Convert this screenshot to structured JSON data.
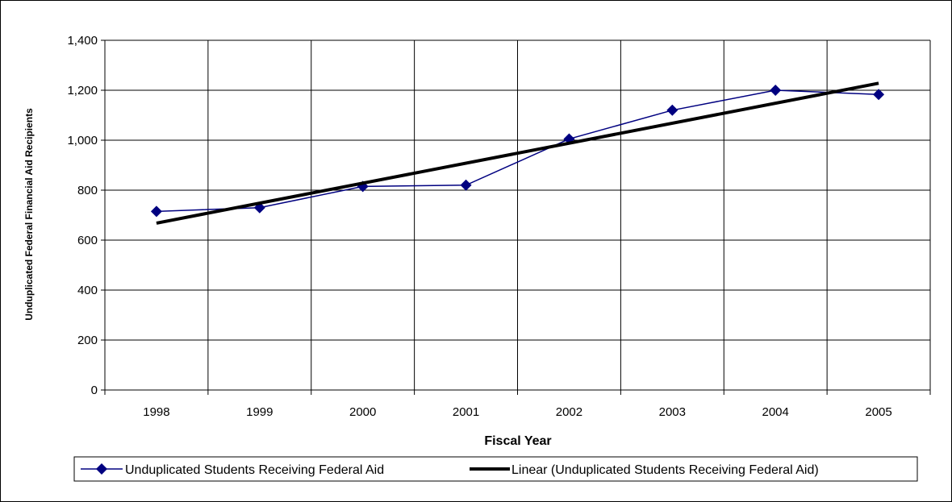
{
  "chart_data": {
    "type": "line",
    "title": "",
    "xlabel": "Fiscal Year",
    "ylabel": "Unduplicated Federal Financial Aid Recipients",
    "categories": [
      "1998",
      "1999",
      "2000",
      "2001",
      "2002",
      "2003",
      "2004",
      "2005"
    ],
    "ylim": [
      0,
      1400
    ],
    "yticks": [
      0,
      200,
      400,
      600,
      800,
      1000,
      1200,
      1400
    ],
    "ytick_labels": [
      "0",
      "200",
      "400",
      "600",
      "800",
      "1,000",
      "1,200",
      "1,400"
    ],
    "grid": true,
    "legend_position": "bottom",
    "series": [
      {
        "name": "Unduplicated Students Receiving Federal Aid",
        "values": [
          715,
          730,
          815,
          820,
          1005,
          1120,
          1200,
          1183
        ],
        "color": "#000080",
        "marker": "diamond"
      },
      {
        "name": "Linear (Unduplicated Students Receiving Federal Aid)",
        "trendline_of": "Unduplicated Students Receiving Federal Aid",
        "values": [
          668,
          748,
          828,
          908,
          988,
          1068,
          1148,
          1228
        ],
        "color": "#000000"
      }
    ]
  }
}
